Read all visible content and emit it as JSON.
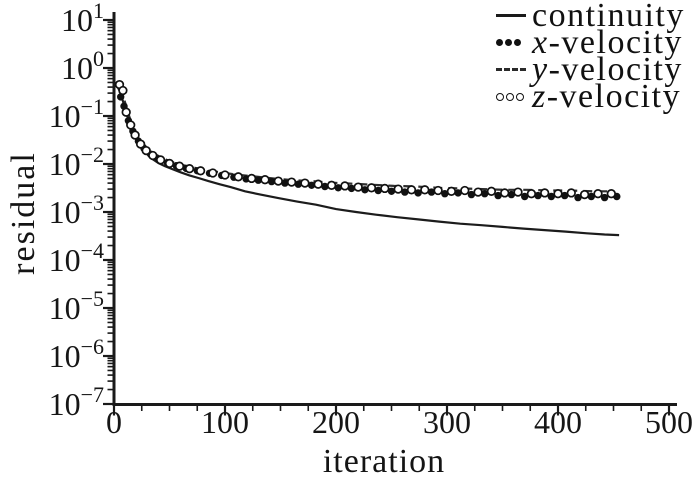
{
  "figure": {
    "background": "#ffffff",
    "ink_color": "#1a1a1a"
  },
  "legend": {
    "items": [
      {
        "prefix": "",
        "label": "continuity",
        "marker": "solid-line"
      },
      {
        "prefix": "x",
        "label": "-velocity",
        "marker": "filled-dots"
      },
      {
        "prefix": "y",
        "label": "-velocity",
        "marker": "dashed-line"
      },
      {
        "prefix": "z",
        "label": "-velocity",
        "marker": "open-circles"
      }
    ]
  },
  "chart_data": {
    "type": "line",
    "title": "",
    "xlabel": "iteration",
    "ylabel": "residual",
    "legend_position": "top-right",
    "grid": false,
    "x_axis": {
      "min": 0,
      "max": 500,
      "major_ticks": [
        0,
        100,
        200,
        300,
        400,
        500
      ],
      "minor_tick_step": 25
    },
    "y_axis": {
      "scale": "log",
      "tick_exponents": [
        1,
        0,
        -1,
        -2,
        -3,
        -4,
        -5,
        -6,
        -7
      ],
      "min_exp": -7,
      "max_exp": 1
    },
    "series": [
      {
        "name": "continuity",
        "style": "solid-line",
        "x": [
          3,
          6,
          9,
          12,
          15,
          18,
          22,
          26,
          30,
          35,
          40,
          46,
          52,
          60,
          68,
          76,
          85,
          95,
          105,
          118,
          132,
          148,
          165,
          182,
          200,
          218,
          236,
          255,
          274,
          293,
          312,
          331,
          350,
          369,
          388,
          407,
          426,
          442,
          455
        ],
        "y": [
          0.42,
          0.3,
          0.17,
          0.1,
          0.062,
          0.042,
          0.028,
          0.021,
          0.016,
          0.0125,
          0.0105,
          0.009,
          0.0079,
          0.0067,
          0.0058,
          0.0051,
          0.0044,
          0.0038,
          0.0033,
          0.0027,
          0.0023,
          0.00195,
          0.00165,
          0.00142,
          0.00115,
          0.001,
          0.00088,
          0.00078,
          0.0007,
          0.00063,
          0.00057,
          0.00053,
          0.00049,
          0.00045,
          0.00042,
          0.00039,
          0.00036,
          0.00034,
          0.00033
        ]
      },
      {
        "name": "x-velocity",
        "style": "filled-dots",
        "x": [
          6,
          9,
          13,
          17,
          22,
          27,
          33,
          40,
          48,
          56,
          65,
          75,
          86,
          97,
          108,
          119,
          130,
          142,
          154,
          166,
          178,
          190,
          202,
          214,
          226,
          238,
          250,
          262,
          274,
          286,
          298,
          310,
          322,
          334,
          346,
          358,
          370,
          382,
          394,
          406,
          418,
          430,
          442,
          453
        ],
        "y": [
          0.25,
          0.16,
          0.08,
          0.048,
          0.03,
          0.021,
          0.016,
          0.0128,
          0.0106,
          0.0092,
          0.0081,
          0.0072,
          0.0064,
          0.0058,
          0.0053,
          0.0049,
          0.0046,
          0.0043,
          0.004,
          0.0038,
          0.0036,
          0.0034,
          0.0032,
          0.0031,
          0.0029,
          0.0028,
          0.0027,
          0.0026,
          0.0025,
          0.0026,
          0.0024,
          0.0025,
          0.0023,
          0.0024,
          0.0022,
          0.0023,
          0.0021,
          0.0022,
          0.0021,
          0.0022,
          0.002,
          0.0021,
          0.002,
          0.0021
        ]
      },
      {
        "name": "y-velocity",
        "style": "dashed-line",
        "x": [
          4,
          8,
          12,
          16,
          20,
          25,
          30,
          36,
          43,
          50,
          58,
          66,
          75,
          85,
          96,
          108,
          120,
          133,
          147,
          162,
          178,
          195,
          213,
          232,
          252,
          272,
          292,
          312,
          332,
          352,
          372,
          392,
          412,
          432,
          450
        ],
        "y": [
          0.4,
          0.28,
          0.13,
          0.068,
          0.044,
          0.029,
          0.021,
          0.0165,
          0.0135,
          0.0115,
          0.01,
          0.009,
          0.0081,
          0.0073,
          0.0067,
          0.0061,
          0.0057,
          0.0053,
          0.0049,
          0.0046,
          0.0044,
          0.0041,
          0.0039,
          0.0037,
          0.0035,
          0.0034,
          0.0032,
          0.0031,
          0.003,
          0.0029,
          0.0029,
          0.0028,
          0.0028,
          0.0027,
          0.0027
        ]
      },
      {
        "name": "z-velocity",
        "style": "open-circles",
        "x": [
          5,
          8,
          11,
          15,
          19,
          24,
          29,
          35,
          42,
          50,
          59,
          68,
          78,
          89,
          100,
          112,
          124,
          136,
          148,
          160,
          172,
          184,
          196,
          208,
          220,
          232,
          244,
          256,
          268,
          280,
          292,
          304,
          316,
          328,
          340,
          352,
          364,
          376,
          388,
          400,
          412,
          424,
          436,
          448
        ],
        "y": [
          0.45,
          0.34,
          0.12,
          0.065,
          0.04,
          0.026,
          0.019,
          0.015,
          0.0122,
          0.0103,
          0.009,
          0.008,
          0.0072,
          0.0065,
          0.0059,
          0.0054,
          0.005,
          0.0047,
          0.0044,
          0.0042,
          0.004,
          0.0038,
          0.0036,
          0.0035,
          0.0033,
          0.0032,
          0.0031,
          0.003,
          0.0029,
          0.0029,
          0.0028,
          0.0027,
          0.0028,
          0.0026,
          0.0027,
          0.0025,
          0.0026,
          0.0024,
          0.0025,
          0.0024,
          0.0025,
          0.0023,
          0.0024,
          0.0024
        ]
      }
    ]
  }
}
